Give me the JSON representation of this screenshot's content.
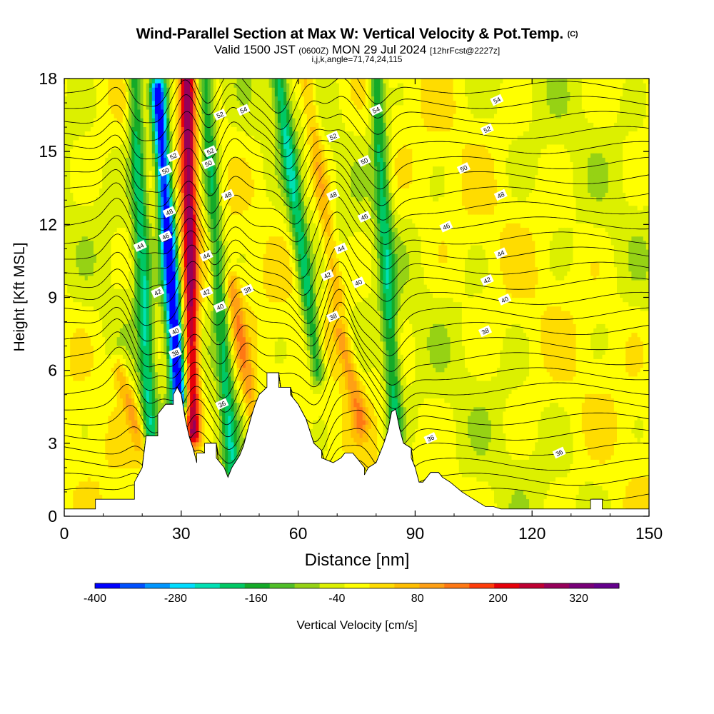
{
  "header": {
    "title": "Wind-Parallel Section at Max W: Vertical Velocity & Pot.Temp.",
    "copyright": "(C)",
    "valid_prefix": "Valid 1500 JST",
    "valid_utc": "(0600Z)",
    "valid_date": "MON 29 Jul 2024",
    "forecast": "[12hrFcst@2227z]",
    "indices": "i,j,k,angle=71,74,24,115"
  },
  "chart_data": {
    "type": "heatmap",
    "xlabel": "Distance [nm]",
    "ylabel": "Height [Kft MSL]",
    "xlim": [
      0,
      150
    ],
    "ylim": [
      0,
      18
    ],
    "xticks": [
      0,
      30,
      60,
      90,
      120,
      150
    ],
    "yticks": [
      0,
      3,
      6,
      9,
      12,
      15,
      18
    ],
    "colorbar": {
      "label": "Vertical Velocity [cm/s]",
      "ticks": [
        -400,
        -280,
        -160,
        -40,
        80,
        200,
        320
      ],
      "bounds": [
        -400,
        380
      ],
      "colors": [
        "#0000ff",
        "#0050ff",
        "#0096ff",
        "#00dcff",
        "#00e0b4",
        "#00c864",
        "#14aa28",
        "#50be28",
        "#96d214",
        "#dcf000",
        "#ffff00",
        "#ffdc00",
        "#ffbe00",
        "#ffa014",
        "#ff7814",
        "#ff3c0a",
        "#e6000a",
        "#be0032",
        "#96005a",
        "#780078",
        "#64008c"
      ]
    },
    "terrain_kft": [
      [
        0,
        0.3
      ],
      [
        8,
        0.3
      ],
      [
        8,
        0.7
      ],
      [
        18,
        0.7
      ],
      [
        18,
        1.4
      ],
      [
        20,
        2.0
      ],
      [
        21,
        3.3
      ],
      [
        24,
        3.3
      ],
      [
        24,
        4.2
      ],
      [
        26,
        4.6
      ],
      [
        28,
        4.6
      ],
      [
        28,
        5.0
      ],
      [
        29,
        5.3
      ],
      [
        30,
        5.0
      ],
      [
        31,
        4.0
      ],
      [
        32,
        3.3
      ],
      [
        33,
        2.8
      ],
      [
        34,
        2.2
      ],
      [
        34,
        2.6
      ],
      [
        36,
        2.6
      ],
      [
        36,
        3.0
      ],
      [
        39,
        3.0
      ],
      [
        39,
        2.4
      ],
      [
        41,
        2.0
      ],
      [
        42,
        1.6
      ],
      [
        43,
        2.0
      ],
      [
        45,
        2.5
      ],
      [
        46,
        2.9
      ],
      [
        47,
        3.5
      ],
      [
        48,
        4.1
      ],
      [
        49,
        4.6
      ],
      [
        50,
        5.0
      ],
      [
        52,
        5.3
      ],
      [
        52,
        5.9
      ],
      [
        55,
        5.9
      ],
      [
        55,
        5.3
      ],
      [
        58,
        5.3
      ],
      [
        58,
        5.0
      ],
      [
        60,
        4.6
      ],
      [
        62,
        4.0
      ],
      [
        63,
        3.5
      ],
      [
        64,
        3.0
      ],
      [
        66,
        2.7
      ],
      [
        66,
        2.4
      ],
      [
        69,
        2.2
      ],
      [
        71,
        2.4
      ],
      [
        72,
        2.6
      ],
      [
        74,
        2.6
      ],
      [
        75,
        2.4
      ],
      [
        76,
        2.2
      ],
      [
        77,
        2.0
      ],
      [
        77,
        1.7
      ],
      [
        78,
        2.0
      ],
      [
        80,
        2.2
      ],
      [
        81,
        2.6
      ],
      [
        82,
        3.0
      ],
      [
        83,
        3.5
      ],
      [
        84,
        4.3
      ],
      [
        85,
        4.4
      ],
      [
        86,
        3.6
      ],
      [
        87,
        3.0
      ],
      [
        89,
        2.8
      ],
      [
        89,
        2.4
      ],
      [
        90,
        2.0
      ],
      [
        91,
        1.4
      ],
      [
        92,
        1.4
      ],
      [
        93,
        1.6
      ],
      [
        94,
        1.8
      ],
      [
        96,
        1.8
      ],
      [
        97,
        1.6
      ],
      [
        99,
        1.4
      ],
      [
        102,
        1.0
      ],
      [
        104,
        0.8
      ],
      [
        106,
        0.6
      ],
      [
        108,
        0.4
      ],
      [
        110,
        0.4
      ],
      [
        112,
        0.3
      ],
      [
        135,
        0.3
      ],
      [
        135,
        0.7
      ],
      [
        138,
        0.7
      ],
      [
        138,
        0.3
      ],
      [
        151,
        0.3
      ]
    ],
    "updraft_cores": [
      {
        "x_bottom": 33,
        "x_top": 31.5,
        "z_bottom": 3.5,
        "z_top": 18,
        "w_max": 300
      },
      {
        "x_bottom": 49,
        "x_top": 43,
        "z_bottom": 3.5,
        "z_top": 9.5,
        "w_max": 120
      },
      {
        "x_bottom": 76,
        "x_top": 71,
        "z_bottom": 4.0,
        "z_top": 7.5,
        "w_max": 110
      },
      {
        "x_bottom": 70,
        "x_top": 62,
        "z_bottom": 9,
        "z_top": 18,
        "w_max": 100
      },
      {
        "x_bottom": 20,
        "x_top": 14,
        "z_bottom": 3,
        "z_top": 6,
        "w_max": 100
      }
    ],
    "downdraft_cores": [
      {
        "x_bottom": 29.5,
        "x_top": 24,
        "z_bottom": 4.8,
        "z_top": 17.5,
        "w_min": -400
      },
      {
        "x_bottom": 65,
        "x_top": 55,
        "z_bottom": 6,
        "z_top": 18,
        "w_min": -180
      },
      {
        "x_bottom": 85,
        "x_top": 80,
        "z_bottom": 3.5,
        "z_top": 18,
        "w_min": -160
      },
      {
        "x_bottom": 22,
        "x_top": 18,
        "z_bottom": 3,
        "z_top": 18,
        "w_min": -180
      },
      {
        "x_bottom": 43,
        "x_top": 36,
        "z_bottom": 2,
        "z_top": 18,
        "w_min": -160
      }
    ],
    "theta_contour_labels": [
      {
        "x": 40.5,
        "z": 4.6,
        "text": "36"
      },
      {
        "x": 94,
        "z": 3.2,
        "text": "36"
      },
      {
        "x": 127,
        "z": 2.6,
        "text": "36"
      },
      {
        "x": 28.5,
        "z": 6.7,
        "text": "38"
      },
      {
        "x": 47,
        "z": 9.3,
        "text": "38"
      },
      {
        "x": 69,
        "z": 8.2,
        "text": "38"
      },
      {
        "x": 108,
        "z": 7.6,
        "text": "38"
      },
      {
        "x": 28.5,
        "z": 7.6,
        "text": "40"
      },
      {
        "x": 40,
        "z": 8.6,
        "text": "40"
      },
      {
        "x": 75.5,
        "z": 9.6,
        "text": "40"
      },
      {
        "x": 113,
        "z": 8.9,
        "text": "40"
      },
      {
        "x": 24,
        "z": 9.2,
        "text": "42"
      },
      {
        "x": 36.5,
        "z": 9.2,
        "text": "42"
      },
      {
        "x": 67.5,
        "z": 9.9,
        "text": "42"
      },
      {
        "x": 108.5,
        "z": 9.7,
        "text": "42"
      },
      {
        "x": 19.5,
        "z": 11.1,
        "text": "44"
      },
      {
        "x": 36.5,
        "z": 10.7,
        "text": "44"
      },
      {
        "x": 71,
        "z": 11.0,
        "text": "44"
      },
      {
        "x": 112,
        "z": 10.8,
        "text": "44"
      },
      {
        "x": 26,
        "z": 11.5,
        "text": "46"
      },
      {
        "x": 77,
        "z": 12.3,
        "text": "46"
      },
      {
        "x": 98,
        "z": 11.9,
        "text": "46"
      },
      {
        "x": 27,
        "z": 12.5,
        "text": "48"
      },
      {
        "x": 42,
        "z": 13.2,
        "text": "48"
      },
      {
        "x": 69,
        "z": 13.2,
        "text": "48"
      },
      {
        "x": 112,
        "z": 13.2,
        "text": "48"
      },
      {
        "x": 26,
        "z": 14.2,
        "text": "50"
      },
      {
        "x": 37,
        "z": 14.5,
        "text": "50"
      },
      {
        "x": 77,
        "z": 14.6,
        "text": "50"
      },
      {
        "x": 102.5,
        "z": 14.3,
        "text": "50"
      },
      {
        "x": 28,
        "z": 14.8,
        "text": "52"
      },
      {
        "x": 37.5,
        "z": 15.0,
        "text": "52"
      },
      {
        "x": 40,
        "z": 16.5,
        "text": "52"
      },
      {
        "x": 69,
        "z": 15.6,
        "text": "52"
      },
      {
        "x": 108.5,
        "z": 15.9,
        "text": "52"
      },
      {
        "x": 46,
        "z": 16.7,
        "text": "54"
      },
      {
        "x": 80,
        "z": 16.7,
        "text": "54"
      },
      {
        "x": 111,
        "z": 17.1,
        "text": "54"
      }
    ]
  }
}
